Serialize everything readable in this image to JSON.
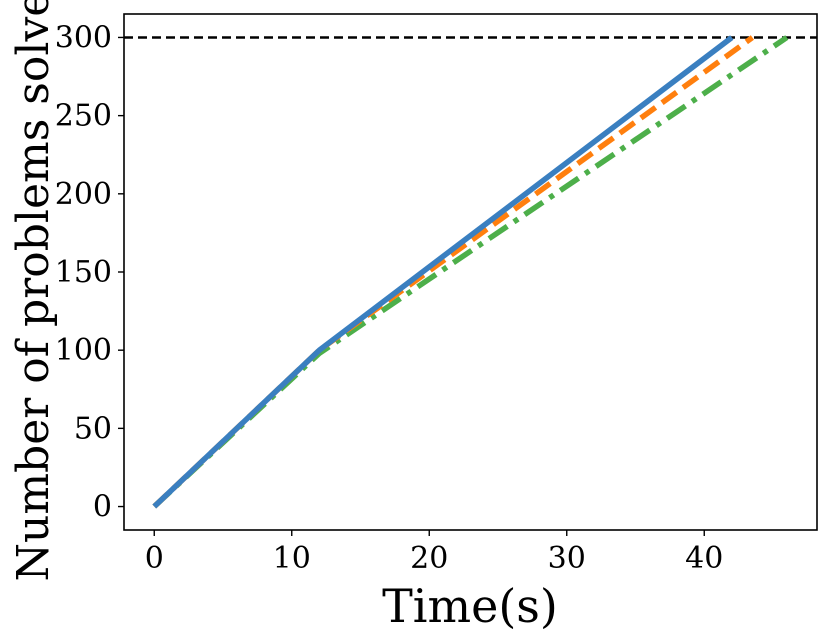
{
  "chart_data": {
    "type": "line",
    "title": "",
    "xlabel": "Time(s)",
    "ylabel": "Number of problems solved",
    "xlim": [
      -2.2,
      48.2
    ],
    "ylim": [
      -15,
      315
    ],
    "xticks": [
      0,
      10,
      20,
      30,
      40
    ],
    "yticks": [
      0,
      50,
      100,
      150,
      200,
      250,
      300
    ],
    "grid": false,
    "legend": "none",
    "reference_line": {
      "y": 300,
      "style": "dashed",
      "color": "#000000"
    },
    "series": [
      {
        "color": "#3a7fc0",
        "style": "solid",
        "x": [
          0,
          12,
          42
        ],
        "y": [
          0,
          100,
          300
        ]
      },
      {
        "color": "#ff7f0e",
        "style": "dashed",
        "x": [
          0,
          12,
          43.5
        ],
        "y": [
          0,
          100,
          300
        ]
      },
      {
        "color": "#4daf4a",
        "style": "dashdot",
        "x": [
          0,
          12,
          46
        ],
        "y": [
          0,
          98,
          300
        ]
      }
    ]
  }
}
